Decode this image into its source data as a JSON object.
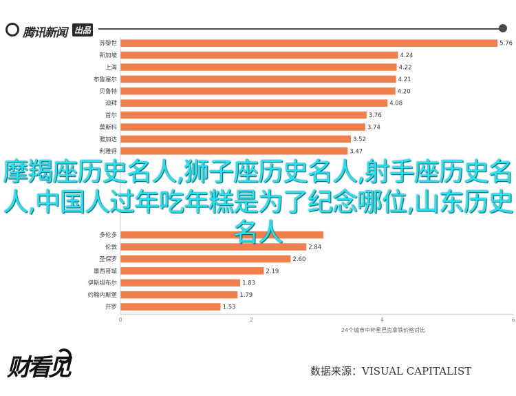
{
  "header": {
    "logo_name": "腾讯新闻",
    "logo_badge": "出品"
  },
  "overlay_title": "摩羯座历史名人,狮子座历史名人,射手座历史名人,中国人过年吃年糕是为了纪念哪位,山东历史名人",
  "brand_bottom": "财看见",
  "source_text": "数据来源：VISUAL CAPITALIST",
  "colors": {
    "bar": "#f07f4e",
    "axis": "#cccccc",
    "text": "#444444",
    "overlay": "#22e4f0"
  },
  "chart_data": {
    "type": "bar",
    "orientation": "horizontal",
    "categories": [
      "苏黎世",
      "新加坡",
      "上海",
      "布鲁塞尔",
      "贝鲁特",
      "迪拜",
      "首尔",
      "莫斯科",
      "雅加达",
      "利雅得",
      "",
      "",
      "",
      "",
      "",
      "",
      "多伦多",
      "伦敦",
      "圣保罗",
      "墨西哥城",
      "伊斯坦布尔",
      "约翰内斯堡",
      "开罗"
    ],
    "values": [
      5.76,
      4.24,
      4.22,
      4.21,
      4.2,
      4.08,
      3.76,
      3.74,
      3.52,
      3.47,
      null,
      null,
      null,
      null,
      null,
      null,
      3.1,
      2.84,
      2.6,
      2.19,
      1.83,
      1.79,
      1.53
    ],
    "value_labels": [
      "5.76",
      "4.24",
      "4.22",
      "4.21",
      "4.20",
      "4.08",
      "3.76",
      "3.74",
      "3.52",
      "3.47",
      "",
      "",
      "",
      "",
      "",
      "",
      "",
      "2.84",
      "2.60",
      "2.19",
      "1.83",
      "1.79",
      "1.53"
    ],
    "xlim": [
      0,
      6
    ],
    "x_ticks": [
      "0",
      "2",
      "4",
      "6"
    ],
    "xlabel": "24个城市中杯星巴克拿铁价格对比",
    "grid": false
  }
}
